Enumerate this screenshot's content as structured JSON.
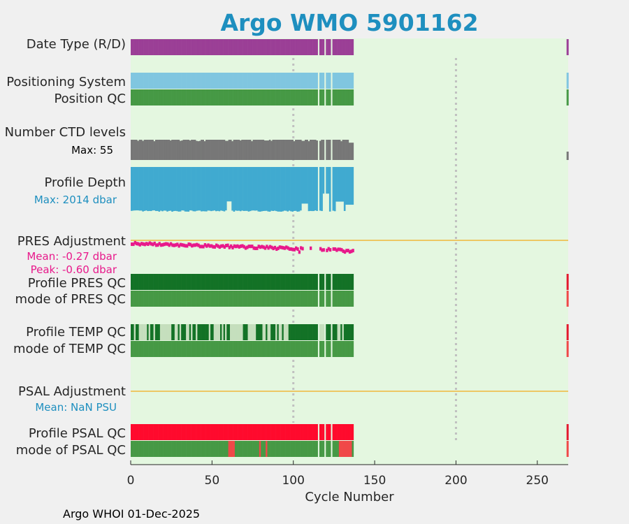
{
  "chart_data": {
    "type": "status-timeline",
    "title": "Argo WMO 5901162",
    "xlabel": "Cycle Number",
    "xlim": [
      0,
      269
    ],
    "xticks": [
      0,
      50,
      100,
      150,
      200,
      250
    ],
    "reference_lines": [
      100,
      200
    ],
    "footer": "Argo WHOI 01-Dec-2025",
    "last_cycle": 137,
    "terminal_cycle": 268,
    "missing_cycles": [
      116,
      120,
      124
    ],
    "rows": {
      "date_type": {
        "label": "Date Type (R/D)",
        "color": "#9b3f96"
      },
      "positioning_system": {
        "label": "Positioning System",
        "color": "#80c6e0"
      },
      "position_qc": {
        "label": "Position QC",
        "color": "#469945"
      },
      "ctd_levels": {
        "label": "Number CTD levels",
        "max_label": "Max: 55",
        "max": 55,
        "color": "#777777"
      },
      "profile_depth": {
        "label": "Profile Depth",
        "max_label": "Max: 2014 dbar",
        "max": 2014,
        "color": "#40aad0",
        "label_color": "#1e8fbf"
      },
      "pres_adjustment": {
        "label": "PRES Adjustment",
        "mean_label": "Mean: -0.27 dbar",
        "peak_label": "Peak: -0.60 dbar",
        "mean": -0.27,
        "peak": -0.6,
        "color": "#e8198b",
        "zero_color": "#f0b73a"
      },
      "profile_pres_qc": {
        "label": "Profile PRES QC",
        "color": "#137226"
      },
      "mode_pres_qc": {
        "label": "mode of PRES QC",
        "color": "#469945"
      },
      "profile_temp_qc": {
        "label": "Profile TEMP QC",
        "color": "#137226",
        "alt_color": "#c5dfbd"
      },
      "mode_temp_qc": {
        "label": "mode of TEMP QC",
        "color": "#469945"
      },
      "psal_adjustment": {
        "label": "PSAL Adjustment",
        "mean_label": "Mean:  NaN PSU",
        "label_color": "#1e8fbf",
        "zero_color": "#f0b73a"
      },
      "profile_psal_qc": {
        "label": "Profile PSAL QC",
        "color": "#ff0a2d"
      },
      "mode_psal_qc": {
        "label": "mode of PSAL QC",
        "color": "#469945",
        "flag_color": "#f04848",
        "flag_cycles": [
          61,
          62,
          63,
          64,
          80,
          84,
          129,
          130,
          131,
          132,
          133,
          134,
          135,
          136
        ]
      }
    },
    "terminal_colors": {
      "date_type": "#9b3f96",
      "positioning_system": "#80c6e0",
      "position_qc": "#469945",
      "ctd_levels": "#777777",
      "profile_pres_qc": "#e31a2d",
      "mode_pres_qc": "#f04848",
      "profile_temp_qc": "#e31a2d",
      "mode_temp_qc": "#f04848",
      "profile_psal_qc": "#e31a2d",
      "mode_psal_qc": "#f04848"
    }
  }
}
